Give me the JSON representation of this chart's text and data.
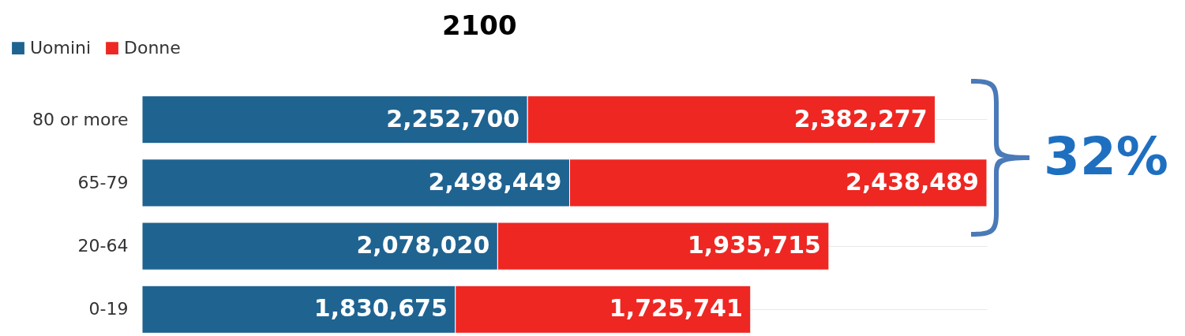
{
  "chart_data": {
    "type": "bar",
    "title": "2100",
    "orientation": "horizontal",
    "stacked": true,
    "categories": [
      "80 or more",
      "65-79",
      "20-64",
      "0-19"
    ],
    "series": [
      {
        "name": "Uomini",
        "color": "#1f6391",
        "values": [
          2252700,
          2498449,
          2078020,
          1830675
        ],
        "value_labels": [
          "2,252,700",
          "2,498,449",
          "2,078,020",
          "1,830,675"
        ]
      },
      {
        "name": "Donne",
        "color": "#ee2722",
        "values": [
          2382277,
          2438489,
          1935715,
          1725741
        ],
        "value_labels": [
          "2,382,277",
          "2,438,489",
          "1,935,715",
          "1,725,741"
        ]
      }
    ],
    "tick_labels": "y",
    "grid": "y",
    "legend": "top left",
    "annotations": [
      "32%"
    ]
  }
}
